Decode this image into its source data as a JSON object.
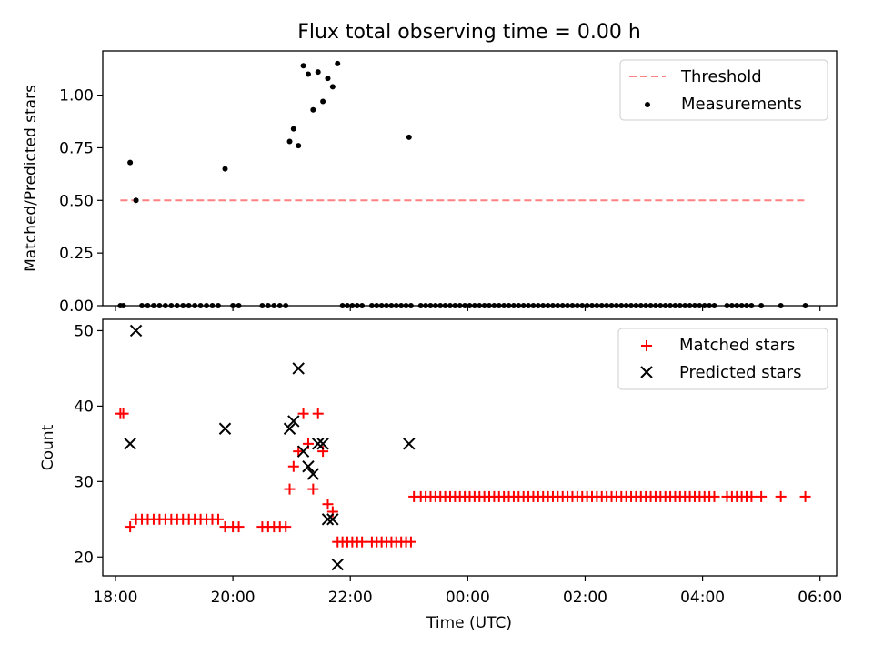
{
  "chart_data": [
    {
      "type": "scatter",
      "title": "Flux total observing time = 0.00 h",
      "xlabel": "",
      "ylabel": "Matched/Predicted stars",
      "xlim": [
        "17:47",
        "06:17"
      ],
      "ylim": [
        0,
        1.21
      ],
      "yticks": [
        0.0,
        0.25,
        0.5,
        0.75,
        1.0
      ],
      "ytick_labels": [
        "0.00",
        "0.25",
        "0.50",
        "0.75",
        "1.00"
      ],
      "legend_position": "top-right",
      "threshold": {
        "name": "Threshold",
        "value": 0.5,
        "x_start": "18:05",
        "x_end": "05:45",
        "color": "#ff8080",
        "style": "dashed"
      },
      "series": [
        {
          "name": "Measurements",
          "color": "#000000",
          "marker": "dot",
          "points": [
            [
              "18:05",
              0
            ],
            [
              "18:08",
              0
            ],
            [
              "18:15",
              0.68
            ],
            [
              "18:21",
              0.5
            ],
            [
              "18:27",
              0
            ],
            [
              "18:33",
              0
            ],
            [
              "18:39",
              0
            ],
            [
              "18:45",
              0
            ],
            [
              "18:51",
              0
            ],
            [
              "18:57",
              0
            ],
            [
              "19:03",
              0
            ],
            [
              "19:09",
              0
            ],
            [
              "19:15",
              0
            ],
            [
              "19:21",
              0
            ],
            [
              "19:27",
              0
            ],
            [
              "19:33",
              0
            ],
            [
              "19:39",
              0
            ],
            [
              "19:45",
              0
            ],
            [
              "19:52",
              0.65
            ],
            [
              "20:00",
              0
            ],
            [
              "20:06",
              0
            ],
            [
              "20:30",
              0
            ],
            [
              "20:36",
              0
            ],
            [
              "20:42",
              0
            ],
            [
              "20:48",
              0
            ],
            [
              "20:54",
              0
            ],
            [
              "20:58",
              0.78
            ],
            [
              "21:02",
              0.84
            ],
            [
              "21:07",
              0.76
            ],
            [
              "21:12",
              1.14
            ],
            [
              "21:17",
              1.1
            ],
            [
              "21:22",
              0.93
            ],
            [
              "21:27",
              1.11
            ],
            [
              "21:32",
              0.97
            ],
            [
              "21:37",
              1.08
            ],
            [
              "21:42",
              1.04
            ],
            [
              "21:47",
              1.15
            ],
            [
              "21:52",
              0
            ],
            [
              "21:57",
              0
            ],
            [
              "22:02",
              0
            ],
            [
              "22:07",
              0
            ],
            [
              "22:12",
              0
            ],
            [
              "22:22",
              0
            ],
            [
              "22:27",
              0
            ],
            [
              "22:32",
              0
            ],
            [
              "22:37",
              0
            ],
            [
              "22:42",
              0
            ],
            [
              "22:47",
              0
            ],
            [
              "22:52",
              0
            ],
            [
              "22:57",
              0
            ],
            [
              "23:02",
              0
            ],
            [
              "23:00",
              0.8
            ],
            [
              "23:12",
              0
            ],
            [
              "23:17",
              0
            ],
            [
              "23:22",
              0
            ],
            [
              "23:27",
              0
            ],
            [
              "23:32",
              0
            ],
            [
              "23:37",
              0
            ],
            [
              "23:42",
              0
            ],
            [
              "23:47",
              0
            ],
            [
              "23:52",
              0
            ],
            [
              "23:57",
              0
            ],
            [
              "00:02",
              0
            ],
            [
              "00:07",
              0
            ],
            [
              "00:12",
              0
            ],
            [
              "00:17",
              0
            ],
            [
              "00:22",
              0
            ],
            [
              "00:27",
              0
            ],
            [
              "00:32",
              0
            ],
            [
              "00:37",
              0
            ],
            [
              "00:42",
              0
            ],
            [
              "00:47",
              0
            ],
            [
              "00:52",
              0
            ],
            [
              "00:57",
              0
            ],
            [
              "01:02",
              0
            ],
            [
              "01:07",
              0
            ],
            [
              "01:12",
              0
            ],
            [
              "01:17",
              0
            ],
            [
              "01:22",
              0
            ],
            [
              "01:27",
              0
            ],
            [
              "01:32",
              0
            ],
            [
              "01:37",
              0
            ],
            [
              "01:42",
              0
            ],
            [
              "01:47",
              0
            ],
            [
              "01:52",
              0
            ],
            [
              "01:57",
              0
            ],
            [
              "02:02",
              0
            ],
            [
              "02:07",
              0
            ],
            [
              "02:12",
              0
            ],
            [
              "02:17",
              0
            ],
            [
              "02:22",
              0
            ],
            [
              "02:27",
              0
            ],
            [
              "02:32",
              0
            ],
            [
              "02:37",
              0
            ],
            [
              "02:42",
              0
            ],
            [
              "02:47",
              0
            ],
            [
              "02:52",
              0
            ],
            [
              "02:57",
              0
            ],
            [
              "03:02",
              0
            ],
            [
              "03:07",
              0
            ],
            [
              "03:12",
              0
            ],
            [
              "03:17",
              0
            ],
            [
              "03:22",
              0
            ],
            [
              "03:27",
              0
            ],
            [
              "03:32",
              0
            ],
            [
              "03:37",
              0
            ],
            [
              "03:42",
              0
            ],
            [
              "03:47",
              0
            ],
            [
              "03:52",
              0
            ],
            [
              "03:57",
              0
            ],
            [
              "04:02",
              0
            ],
            [
              "04:07",
              0
            ],
            [
              "04:12",
              0
            ],
            [
              "04:25",
              0
            ],
            [
              "04:30",
              0
            ],
            [
              "04:35",
              0
            ],
            [
              "04:40",
              0
            ],
            [
              "04:45",
              0
            ],
            [
              "04:50",
              0
            ],
            [
              "05:00",
              0
            ],
            [
              "05:20",
              0
            ],
            [
              "05:45",
              0
            ]
          ]
        }
      ]
    },
    {
      "type": "scatter",
      "title": "",
      "xlabel": "Time (UTC)",
      "ylabel": "Count",
      "xlim": [
        "17:47",
        "06:17"
      ],
      "ylim": [
        17.5,
        51.5
      ],
      "yticks": [
        20,
        30,
        40,
        50
      ],
      "ytick_labels": [
        "20",
        "30",
        "40",
        "50"
      ],
      "xticks": [
        "18:00",
        "20:00",
        "22:00",
        "00:00",
        "02:00",
        "04:00",
        "06:00"
      ],
      "legend_position": "top-right",
      "series": [
        {
          "name": "Matched stars",
          "color": "#ff0000",
          "marker": "plus",
          "points": [
            [
              "18:05",
              39
            ],
            [
              "18:08",
              39
            ],
            [
              "18:15",
              24
            ],
            [
              "18:21",
              25
            ],
            [
              "18:27",
              25
            ],
            [
              "18:33",
              25
            ],
            [
              "18:39",
              25
            ],
            [
              "18:45",
              25
            ],
            [
              "18:51",
              25
            ],
            [
              "18:57",
              25
            ],
            [
              "19:03",
              25
            ],
            [
              "19:09",
              25
            ],
            [
              "19:15",
              25
            ],
            [
              "19:21",
              25
            ],
            [
              "19:27",
              25
            ],
            [
              "19:33",
              25
            ],
            [
              "19:39",
              25
            ],
            [
              "19:45",
              25
            ],
            [
              "19:52",
              24
            ],
            [
              "20:00",
              24
            ],
            [
              "20:06",
              24
            ],
            [
              "20:30",
              24
            ],
            [
              "20:36",
              24
            ],
            [
              "20:42",
              24
            ],
            [
              "20:48",
              24
            ],
            [
              "20:54",
              24
            ],
            [
              "20:58",
              29
            ],
            [
              "21:02",
              32
            ],
            [
              "21:07",
              34
            ],
            [
              "21:12",
              39
            ],
            [
              "21:17",
              35
            ],
            [
              "21:22",
              29
            ],
            [
              "21:27",
              39
            ],
            [
              "21:32",
              34
            ],
            [
              "21:37",
              27
            ],
            [
              "21:42",
              26
            ],
            [
              "21:47",
              22
            ],
            [
              "21:52",
              22
            ],
            [
              "21:57",
              22
            ],
            [
              "22:02",
              22
            ],
            [
              "22:07",
              22
            ],
            [
              "22:12",
              22
            ],
            [
              "22:22",
              22
            ],
            [
              "22:27",
              22
            ],
            [
              "22:32",
              22
            ],
            [
              "22:37",
              22
            ],
            [
              "22:42",
              22
            ],
            [
              "22:47",
              22
            ],
            [
              "22:52",
              22
            ],
            [
              "22:57",
              22
            ],
            [
              "23:02",
              22
            ],
            [
              "23:05",
              28
            ],
            [
              "23:12",
              28
            ],
            [
              "23:17",
              28
            ],
            [
              "23:22",
              28
            ],
            [
              "23:27",
              28
            ],
            [
              "23:32",
              28
            ],
            [
              "23:37",
              28
            ],
            [
              "23:42",
              28
            ],
            [
              "23:47",
              28
            ],
            [
              "23:52",
              28
            ],
            [
              "23:57",
              28
            ],
            [
              "00:02",
              28
            ],
            [
              "00:07",
              28
            ],
            [
              "00:12",
              28
            ],
            [
              "00:17",
              28
            ],
            [
              "00:22",
              28
            ],
            [
              "00:27",
              28
            ],
            [
              "00:32",
              28
            ],
            [
              "00:37",
              28
            ],
            [
              "00:42",
              28
            ],
            [
              "00:47",
              28
            ],
            [
              "00:52",
              28
            ],
            [
              "00:57",
              28
            ],
            [
              "01:02",
              28
            ],
            [
              "01:07",
              28
            ],
            [
              "01:12",
              28
            ],
            [
              "01:17",
              28
            ],
            [
              "01:22",
              28
            ],
            [
              "01:27",
              28
            ],
            [
              "01:32",
              28
            ],
            [
              "01:37",
              28
            ],
            [
              "01:42",
              28
            ],
            [
              "01:47",
              28
            ],
            [
              "01:52",
              28
            ],
            [
              "01:57",
              28
            ],
            [
              "02:02",
              28
            ],
            [
              "02:07",
              28
            ],
            [
              "02:12",
              28
            ],
            [
              "02:17",
              28
            ],
            [
              "02:22",
              28
            ],
            [
              "02:27",
              28
            ],
            [
              "02:32",
              28
            ],
            [
              "02:37",
              28
            ],
            [
              "02:42",
              28
            ],
            [
              "02:47",
              28
            ],
            [
              "02:52",
              28
            ],
            [
              "02:57",
              28
            ],
            [
              "03:02",
              28
            ],
            [
              "03:07",
              28
            ],
            [
              "03:12",
              28
            ],
            [
              "03:17",
              28
            ],
            [
              "03:22",
              28
            ],
            [
              "03:27",
              28
            ],
            [
              "03:32",
              28
            ],
            [
              "03:37",
              28
            ],
            [
              "03:42",
              28
            ],
            [
              "03:47",
              28
            ],
            [
              "03:52",
              28
            ],
            [
              "03:57",
              28
            ],
            [
              "04:02",
              28
            ],
            [
              "04:07",
              28
            ],
            [
              "04:12",
              28
            ],
            [
              "04:25",
              28
            ],
            [
              "04:30",
              28
            ],
            [
              "04:35",
              28
            ],
            [
              "04:40",
              28
            ],
            [
              "04:45",
              28
            ],
            [
              "04:50",
              28
            ],
            [
              "05:00",
              28
            ],
            [
              "05:20",
              28
            ],
            [
              "05:45",
              28
            ]
          ]
        },
        {
          "name": "Predicted stars",
          "color": "#000000",
          "marker": "x",
          "points": [
            [
              "18:15",
              35
            ],
            [
              "18:21",
              50
            ],
            [
              "19:52",
              37
            ],
            [
              "20:58",
              37
            ],
            [
              "21:02",
              38
            ],
            [
              "21:07",
              45
            ],
            [
              "21:12",
              34
            ],
            [
              "21:17",
              32
            ],
            [
              "21:22",
              31
            ],
            [
              "21:27",
              35
            ],
            [
              "21:32",
              35
            ],
            [
              "21:37",
              25
            ],
            [
              "21:42",
              25
            ],
            [
              "21:47",
              19
            ],
            [
              "23:00",
              35
            ]
          ]
        }
      ]
    }
  ]
}
